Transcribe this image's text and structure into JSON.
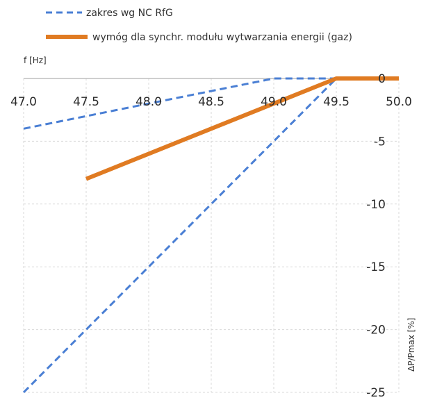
{
  "chart_data": {
    "type": "line",
    "xlabel": "f [Hz]",
    "ylabel": "ΔP/Pmax [%]",
    "xlim": [
      47.0,
      50.0
    ],
    "ylim": [
      -25,
      0
    ],
    "x_ticks": [
      "47.0",
      "47.5",
      "48.0",
      "48.5",
      "49.0",
      "49.5",
      "50.0"
    ],
    "y_ticks": [
      "0",
      "-5",
      "-10",
      "-15",
      "-20",
      "-25"
    ],
    "grid": true,
    "legend_position": "top-left",
    "series": [
      {
        "name": "zakres wg NC RfG",
        "style": "dashed",
        "color": "#4a7fd4",
        "x": [
          47.0,
          49.0,
          49.5
        ],
        "y": [
          -4,
          0,
          0
        ]
      },
      {
        "name": "zakres wg NC RfG",
        "style": "dashed",
        "color": "#4a7fd4",
        "show_in_legend": false,
        "x": [
          47.0,
          49.5
        ],
        "y": [
          -25,
          0
        ]
      },
      {
        "name": "wymóg dla synchr. modułu wytwarzania energii (gaz)",
        "style": "solid",
        "color": "#e07b22",
        "x": [
          47.5,
          49.5,
          50.0
        ],
        "y": [
          -8,
          0,
          0
        ]
      }
    ]
  }
}
